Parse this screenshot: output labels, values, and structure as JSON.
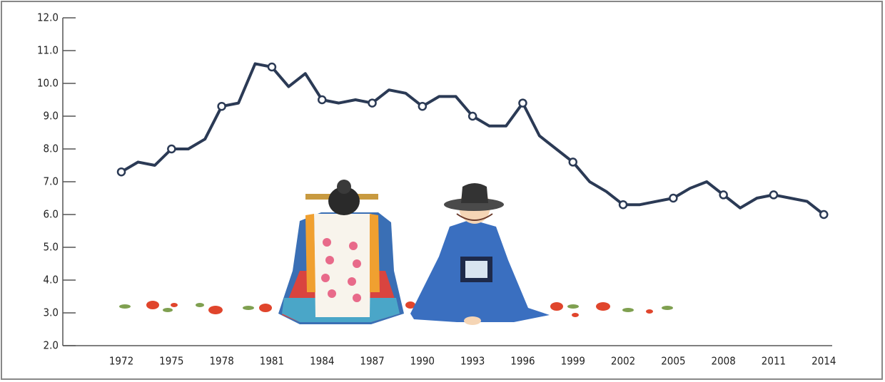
{
  "chart_data": {
    "type": "line",
    "x": [
      1972,
      1973,
      1974,
      1975,
      1976,
      1977,
      1978,
      1979,
      1980,
      1981,
      1982,
      1983,
      1984,
      1985,
      1986,
      1987,
      1988,
      1989,
      1990,
      1991,
      1992,
      1993,
      1994,
      1995,
      1996,
      1997,
      1998,
      1999,
      2000,
      2001,
      2002,
      2003,
      2004,
      2005,
      2006,
      2007,
      2008,
      2009,
      2010,
      2011,
      2012,
      2013,
      2014
    ],
    "values": [
      7.3,
      7.6,
      7.5,
      8.0,
      8.0,
      8.3,
      9.3,
      9.4,
      10.6,
      10.5,
      9.9,
      10.3,
      9.5,
      9.4,
      9.5,
      9.4,
      9.8,
      9.7,
      9.3,
      9.6,
      9.6,
      9.0,
      8.7,
      8.7,
      9.4,
      8.4,
      8.0,
      7.6,
      7.0,
      6.7,
      6.3,
      6.3,
      6.4,
      6.5,
      6.8,
      7.0,
      6.6,
      6.2,
      6.5,
      6.6,
      6.5,
      6.4,
      6.0
    ],
    "color": "#2b3a55",
    "xlim": [
      1968.5,
      2014.5
    ],
    "xticks": [
      1972,
      1975,
      1978,
      1981,
      1984,
      1987,
      1990,
      1993,
      1996,
      1999,
      2002,
      2005,
      2008,
      2011,
      2014
    ],
    "ylim": [
      2,
      12
    ],
    "yticks": [
      {
        "value": 2,
        "label": "2.0"
      },
      {
        "value": 3,
        "label": "3.0"
      },
      {
        "value": 4,
        "label": "4.0"
      },
      {
        "value": 5,
        "label": "5.0"
      },
      {
        "value": 6,
        "label": "6.0"
      },
      {
        "value": 7,
        "label": "7.0"
      },
      {
        "value": 8,
        "label": "8.0"
      },
      {
        "value": 9,
        "label": "9.0"
      },
      {
        "value": 10,
        "label": "10.0"
      },
      {
        "value": 11,
        "label": "11.0"
      },
      {
        "value": 12,
        "label": "12.0"
      }
    ],
    "markers_at_ticks": true
  }
}
